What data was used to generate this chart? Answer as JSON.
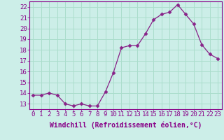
{
  "x": [
    0,
    1,
    2,
    3,
    4,
    5,
    6,
    7,
    8,
    9,
    10,
    11,
    12,
    13,
    14,
    15,
    16,
    17,
    18,
    19,
    20,
    21,
    22,
    23
  ],
  "y": [
    13.8,
    13.8,
    14.0,
    13.8,
    13.0,
    12.8,
    13.0,
    12.8,
    12.8,
    14.1,
    15.9,
    18.2,
    18.4,
    18.4,
    19.5,
    20.8,
    21.3,
    21.5,
    22.2,
    21.3,
    20.4,
    18.5,
    17.6,
    17.2
  ],
  "line_color": "#882288",
  "marker": "D",
  "marker_size": 2.5,
  "bg_color": "#cceee8",
  "grid_color": "#aaddcc",
  "xlabel": "Windchill (Refroidissement éolien,°C)",
  "xlabel_fontsize": 7,
  "tick_fontsize": 6.5,
  "ylim": [
    12.5,
    22.5
  ],
  "yticks": [
    13,
    14,
    15,
    16,
    17,
    18,
    19,
    20,
    21,
    22
  ],
  "xticks": [
    0,
    1,
    2,
    3,
    4,
    5,
    6,
    7,
    8,
    9,
    10,
    11,
    12,
    13,
    14,
    15,
    16,
    17,
    18,
    19,
    20,
    21,
    22,
    23
  ]
}
